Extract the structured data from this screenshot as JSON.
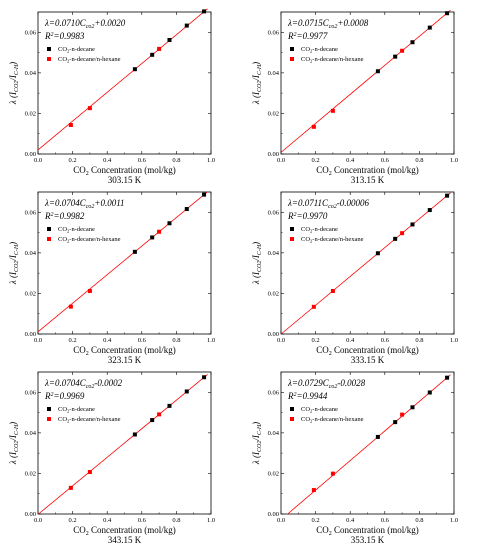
{
  "chart_data": [
    {
      "type": "scatter",
      "temperature": "303.15 K",
      "equation": {
        "slope": "0.0710",
        "sign": "+",
        "intercept": "0.0020",
        "r2": "0.9983",
        "slope_value": 0.071,
        "intercept_value": 0.002
      },
      "xlabel": "CO2 Concentration (mol/kg)",
      "ylabel": "λ (ICO2/IC-H)",
      "xlim": [
        0,
        1.0
      ],
      "ylim": [
        0,
        0.07
      ],
      "xticks": [
        "0.0",
        "0.2",
        "0.4",
        "0.6",
        "0.8",
        "1.0"
      ],
      "yticks": [
        "0.00",
        "0.02",
        "0.04",
        "0.06"
      ],
      "legend": [
        "CO2-n-decane",
        "CO2-n-decane/n-hexane"
      ],
      "legend_position": "top-left",
      "series": [
        {
          "name": "CO2-n-decane",
          "color": "#000000",
          "x": [
            0.56,
            0.66,
            0.76,
            0.86,
            0.96
          ],
          "y": [
            0.0418,
            0.0489,
            0.0562,
            0.0633,
            0.0703
          ]
        },
        {
          "name": "CO2-n-decane/n-hexane",
          "color": "#ff0000",
          "x": [
            0.19,
            0.3,
            0.7
          ],
          "y": [
            0.0143,
            0.0226,
            0.0518
          ]
        }
      ]
    },
    {
      "type": "scatter",
      "temperature": "313.15 K",
      "equation": {
        "slope": "0.0715",
        "sign": "+",
        "intercept": "0.0008",
        "r2": "0.9977",
        "slope_value": 0.0715,
        "intercept_value": 0.0008
      },
      "xlabel": "CO2 Concentration (mol/kg)",
      "ylabel": "λ (ICO2/IC-H)",
      "xlim": [
        0,
        1.0
      ],
      "ylim": [
        0,
        0.07
      ],
      "xticks": [
        "0.0",
        "0.2",
        "0.4",
        "0.6",
        "0.8",
        "1.0"
      ],
      "yticks": [
        "0.00",
        "0.02",
        "0.04",
        "0.06"
      ],
      "legend": [
        "CO2-n-decane",
        "CO2-n-decane/n-hexane"
      ],
      "legend_position": "top-left",
      "series": [
        {
          "name": "CO2-n-decane",
          "color": "#000000",
          "x": [
            0.56,
            0.66,
            0.76,
            0.86,
            0.96
          ],
          "y": [
            0.0408,
            0.048,
            0.0551,
            0.0623,
            0.0694
          ]
        },
        {
          "name": "CO2-n-decane/n-hexane",
          "color": "#ff0000",
          "x": [
            0.19,
            0.3,
            0.7
          ],
          "y": [
            0.0134,
            0.0213,
            0.0509
          ]
        }
      ]
    },
    {
      "type": "scatter",
      "temperature": "323.15 K",
      "equation": {
        "slope": "0.0704",
        "sign": "+",
        "intercept": "0.0011",
        "r2": "0.9982",
        "slope_value": 0.0704,
        "intercept_value": 0.0011
      },
      "xlabel": "CO2 Concentration (mol/kg)",
      "ylabel": "λ (ICO2/IC-H)",
      "xlim": [
        0,
        1.0
      ],
      "ylim": [
        0,
        0.07
      ],
      "xticks": [
        "0.0",
        "0.2",
        "0.4",
        "0.6",
        "0.8",
        "1.0"
      ],
      "yticks": [
        "0.00",
        "0.02",
        "0.04",
        "0.06"
      ],
      "legend": [
        "CO2-n-decane",
        "CO2-n-decane/n-hexane"
      ],
      "legend_position": "top-left",
      "series": [
        {
          "name": "CO2-n-decane",
          "color": "#000000",
          "x": [
            0.56,
            0.66,
            0.76,
            0.86,
            0.96
          ],
          "y": [
            0.0405,
            0.0476,
            0.0546,
            0.0616,
            0.0687
          ]
        },
        {
          "name": "CO2-n-decane/n-hexane",
          "color": "#ff0000",
          "x": [
            0.19,
            0.3,
            0.7
          ],
          "y": [
            0.0135,
            0.0212,
            0.0504
          ]
        }
      ]
    },
    {
      "type": "scatter",
      "temperature": "333.15 K",
      "equation": {
        "slope": "0.0711",
        "sign": "-",
        "intercept": "0.00006",
        "r2": "0.9970",
        "slope_value": 0.0711,
        "intercept_value": -6e-05
      },
      "xlabel": "CO2 Concentration (mol/kg)",
      "ylabel": "λ (ICO2/IC-H)",
      "xlim": [
        0,
        1.0
      ],
      "ylim": [
        0,
        0.07
      ],
      "xticks": [
        "0.0",
        "0.2",
        "0.4",
        "0.6",
        "0.8",
        "1.0"
      ],
      "yticks": [
        "0.00",
        "0.02",
        "0.04",
        "0.06"
      ],
      "legend": [
        "CO2-n-decane",
        "CO2-n-decane/n-hexane"
      ],
      "legend_position": "top-left",
      "series": [
        {
          "name": "CO2-n-decane",
          "color": "#000000",
          "x": [
            0.56,
            0.66,
            0.76,
            0.86,
            0.96
          ],
          "y": [
            0.0398,
            0.0469,
            0.054,
            0.0611,
            0.0682
          ]
        },
        {
          "name": "CO2-n-decane/n-hexane",
          "color": "#ff0000",
          "x": [
            0.19,
            0.3,
            0.7
          ],
          "y": [
            0.0134,
            0.0212,
            0.0497
          ]
        }
      ]
    },
    {
      "type": "scatter",
      "temperature": "343.15 K",
      "equation": {
        "slope": "0.0704",
        "sign": "-",
        "intercept": "0.0002",
        "r2": "0.9969",
        "slope_value": 0.0704,
        "intercept_value": -0.0002
      },
      "xlabel": "CO2 Concentration (mol/kg)",
      "ylabel": "λ (ICO2/IC-H)",
      "xlim": [
        0,
        1.0
      ],
      "ylim": [
        0,
        0.07
      ],
      "xticks": [
        "0.0",
        "0.2",
        "0.4",
        "0.6",
        "0.8",
        "1.0"
      ],
      "yticks": [
        "0.00",
        "0.02",
        "0.04",
        "0.06"
      ],
      "legend": [
        "CO2-n-decane",
        "CO2-n-decane/n-hexane"
      ],
      "legend_position": "top-left",
      "series": [
        {
          "name": "CO2-n-decane",
          "color": "#000000",
          "x": [
            0.56,
            0.66,
            0.76,
            0.86,
            0.96
          ],
          "y": [
            0.0392,
            0.0463,
            0.0533,
            0.0604,
            0.0674
          ]
        },
        {
          "name": "CO2-n-decane/n-hexane",
          "color": "#ff0000",
          "x": [
            0.19,
            0.3,
            0.7
          ],
          "y": [
            0.0129,
            0.0207,
            0.0491
          ]
        }
      ]
    },
    {
      "type": "scatter",
      "temperature": "353.15 K",
      "equation": {
        "slope": "0.0729",
        "sign": "-",
        "intercept": "0.0028",
        "r2": "0.9944",
        "slope_value": 0.0729,
        "intercept_value": -0.0028
      },
      "xlabel": "CO2 Concentration (mol/kg)",
      "ylabel": "λ (ICO2/IC-H)",
      "xlim": [
        0,
        1.0
      ],
      "ylim": [
        0,
        0.07
      ],
      "xticks": [
        "0.0",
        "0.2",
        "0.4",
        "0.6",
        "0.8",
        "1.0"
      ],
      "yticks": [
        "0.00",
        "0.02",
        "0.04",
        "0.06"
      ],
      "legend": [
        "CO2-n-decane",
        "CO2-n-decane/n-hexane"
      ],
      "legend_position": "top-left",
      "series": [
        {
          "name": "CO2-n-decane",
          "color": "#000000",
          "x": [
            0.56,
            0.66,
            0.76,
            0.86,
            0.96
          ],
          "y": [
            0.038,
            0.0453,
            0.0526,
            0.0599,
            0.0672
          ]
        },
        {
          "name": "CO2-n-decane/n-hexane",
          "color": "#ff0000",
          "x": [
            0.19,
            0.3,
            0.7
          ],
          "y": [
            0.0118,
            0.0199,
            0.049
          ]
        }
      ]
    }
  ]
}
